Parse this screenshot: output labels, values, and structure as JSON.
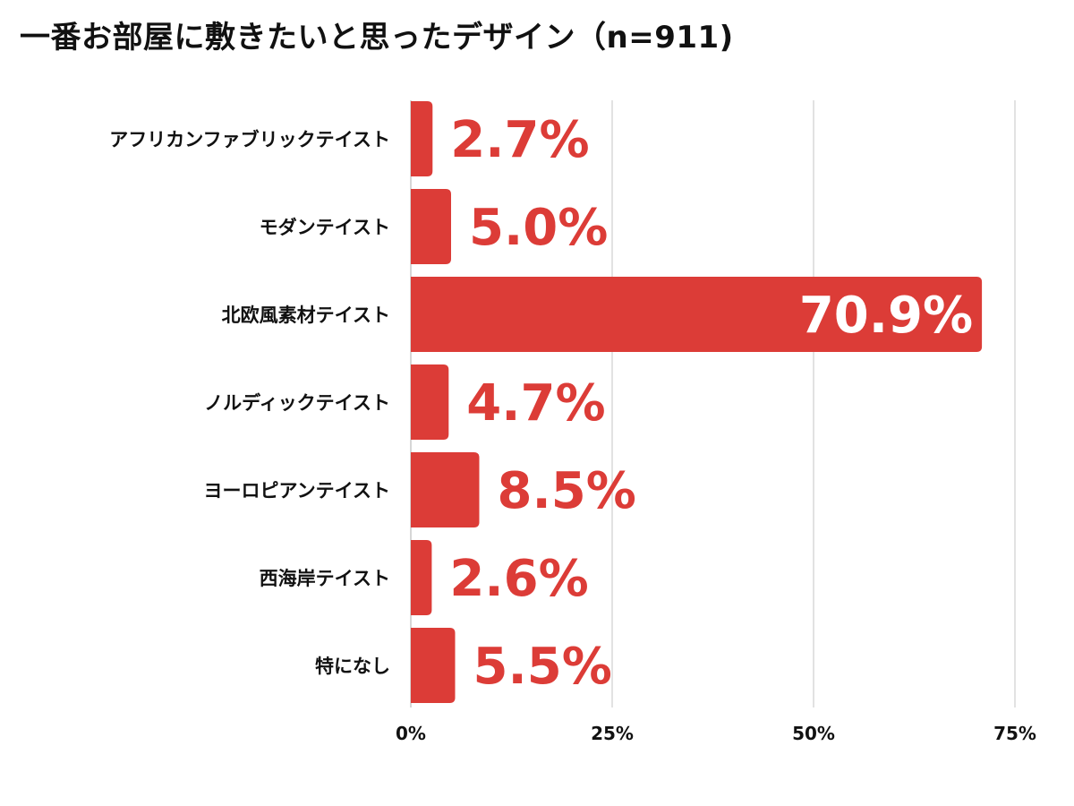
{
  "title": "一番お部屋に敷きたいと思ったデザイン（n=911)",
  "colors": {
    "bar": "#dc3c37",
    "value_label_outside": "#dc3c37",
    "value_label_inside": "#ffffff",
    "grid": "#d9d9d9",
    "text": "#111111"
  },
  "chart_data": {
    "type": "bar",
    "orientation": "horizontal",
    "title": "一番お部屋に敷きたいと思ったデザイン（n=911)",
    "categories": [
      "アフリカンファブリックテイスト",
      "モダンテイスト",
      "北欧風素材テイスト",
      "ノルディックテイスト",
      "ヨーロピアンテイスト",
      "西海岸テイスト",
      "特になし"
    ],
    "values": [
      2.7,
      5.0,
      70.9,
      4.7,
      8.5,
      2.6,
      5.5
    ],
    "value_labels": [
      "2.7%",
      "5.0%",
      "70.9%",
      "4.7%",
      "8.5%",
      "2.6%",
      "5.5%"
    ],
    "xlim": [
      0,
      75
    ],
    "xticks": [
      0,
      25,
      50,
      75
    ],
    "xtick_labels": [
      "0%",
      "25%",
      "50%",
      "75%"
    ],
    "xlabel": "",
    "ylabel": "",
    "grid": true,
    "legend": "none"
  }
}
